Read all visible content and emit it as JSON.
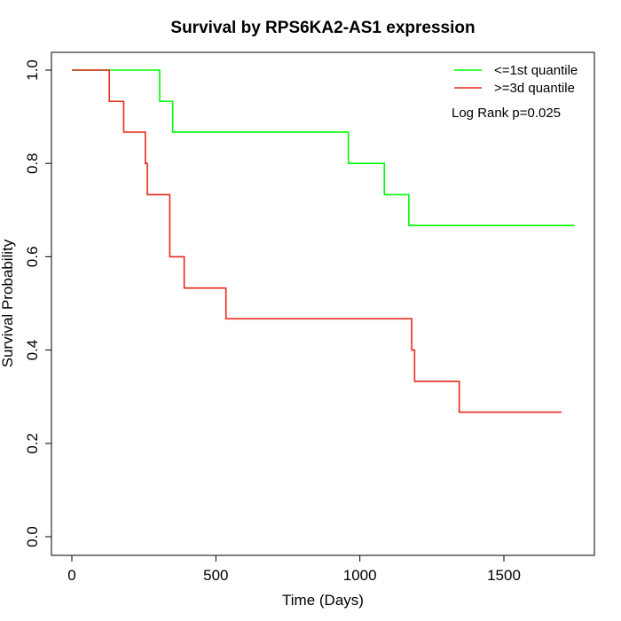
{
  "chart_data": {
    "type": "line",
    "title": "Survival by RPS6KA2-AS1 expression",
    "xlabel": "Time (Days)",
    "ylabel": "Survival Probability",
    "xlim": [
      0,
      1800
    ],
    "ylim": [
      0,
      1.0
    ],
    "x_ticks": [
      0,
      500,
      1000,
      1500
    ],
    "x_tick_labels": [
      "0",
      "500",
      "1000",
      "1500"
    ],
    "y_ticks": [
      0.0,
      0.2,
      0.4,
      0.6,
      0.8,
      1.0
    ],
    "y_tick_labels": [
      "0.0",
      "0.2",
      "0.4",
      "0.6",
      "0.8",
      "1.0"
    ],
    "grid": false,
    "legend_position": "top-right",
    "annotation": "Log Rank p=0.025",
    "series": [
      {
        "name": "<=1st quantile",
        "color": "#00ff00",
        "step": true,
        "x": [
          0,
          305,
          350,
          960,
          1085,
          1170,
          1745
        ],
        "y": [
          1.0,
          0.933,
          0.867,
          0.8,
          0.733,
          0.667,
          0.667
        ]
      },
      {
        "name": ">=3d quantile",
        "color": "#e8281e",
        "step": true,
        "x": [
          0,
          130,
          180,
          255,
          262,
          340,
          390,
          535,
          1180,
          1190,
          1345,
          1700
        ],
        "y": [
          1.0,
          0.933,
          0.867,
          0.8,
          0.733,
          0.6,
          0.533,
          0.467,
          0.4,
          0.333,
          0.267,
          0.267
        ]
      }
    ]
  }
}
